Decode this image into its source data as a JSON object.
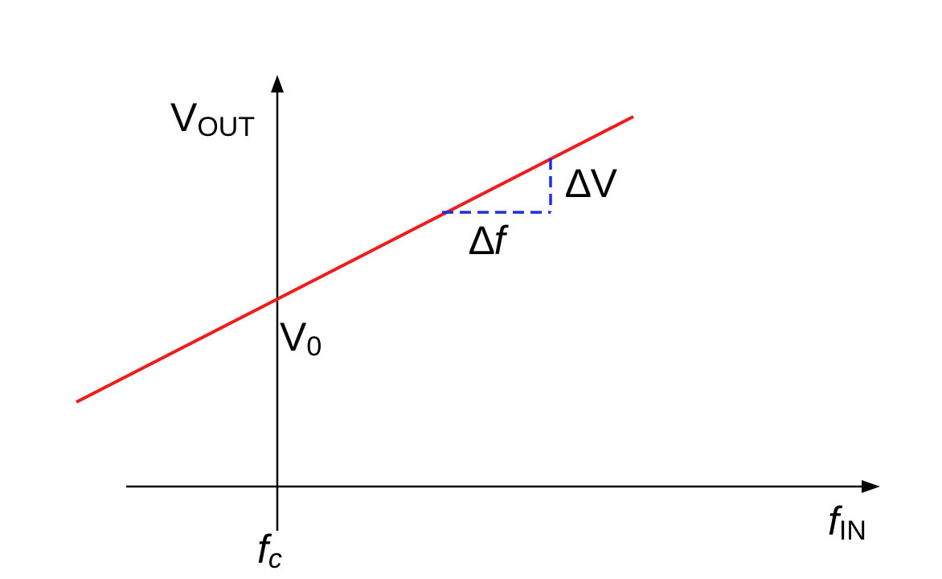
{
  "diagram": {
    "y_axis": {
      "main": "V",
      "sub": "OUT"
    },
    "x_axis": {
      "main": "f",
      "sub": "IN"
    },
    "origin_x": {
      "main": "f",
      "sub": "c"
    },
    "intercept": {
      "main": "V",
      "sub": "0"
    },
    "delta_v": {
      "delta": "∆",
      "text": "V"
    },
    "delta_f": {
      "delta": "∆",
      "text": "f"
    },
    "colors": {
      "axes": "#000000",
      "line": "#ee1c1c",
      "slope_triangle": "#1f2fe0"
    }
  }
}
